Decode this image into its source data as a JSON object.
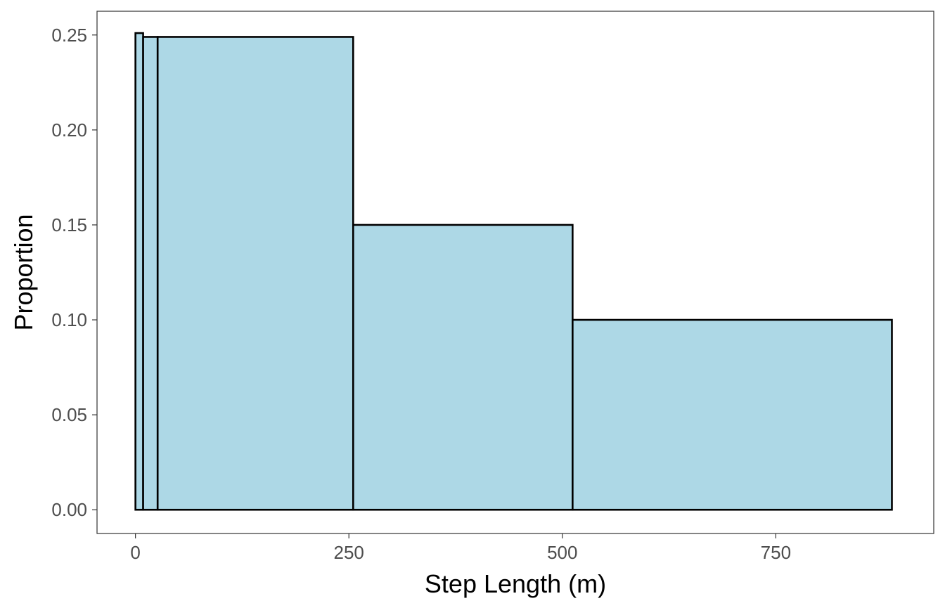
{
  "chart_data": {
    "type": "bar",
    "subtype": "histogram",
    "title": "",
    "xlabel": "Step Length (m)",
    "ylabel": "Proportion",
    "xlim": [
      -45,
      935
    ],
    "ylim": [
      -0.0125,
      0.2625
    ],
    "x_ticks": [
      {
        "value": 0,
        "label": "0"
      },
      {
        "value": 250,
        "label": "250"
      },
      {
        "value": 500,
        "label": "500"
      },
      {
        "value": 750,
        "label": "750"
      }
    ],
    "y_ticks": [
      {
        "value": 0.0,
        "label": "0.00"
      },
      {
        "value": 0.05,
        "label": "0.05"
      },
      {
        "value": 0.1,
        "label": "0.10"
      },
      {
        "value": 0.15,
        "label": "0.15"
      },
      {
        "value": 0.2,
        "label": "0.20"
      },
      {
        "value": 0.25,
        "label": "0.25"
      }
    ],
    "bins": [
      {
        "x_start": 0,
        "x_end": 9,
        "value": 0.251
      },
      {
        "x_start": 9,
        "x_end": 26,
        "value": 0.249
      },
      {
        "x_start": 26,
        "x_end": 255,
        "value": 0.249
      },
      {
        "x_start": 255,
        "x_end": 512,
        "value": 0.15
      },
      {
        "x_start": 512,
        "x_end": 886,
        "value": 0.1
      }
    ],
    "grid": false,
    "legend": "none",
    "colors": {
      "bar_fill": "#add8e6",
      "bar_stroke": "#000000",
      "panel_border": "#333333",
      "tick_color": "#333333",
      "tick_label": "#4d4d4d",
      "axis_title": "#000000",
      "background": "#ffffff"
    }
  }
}
